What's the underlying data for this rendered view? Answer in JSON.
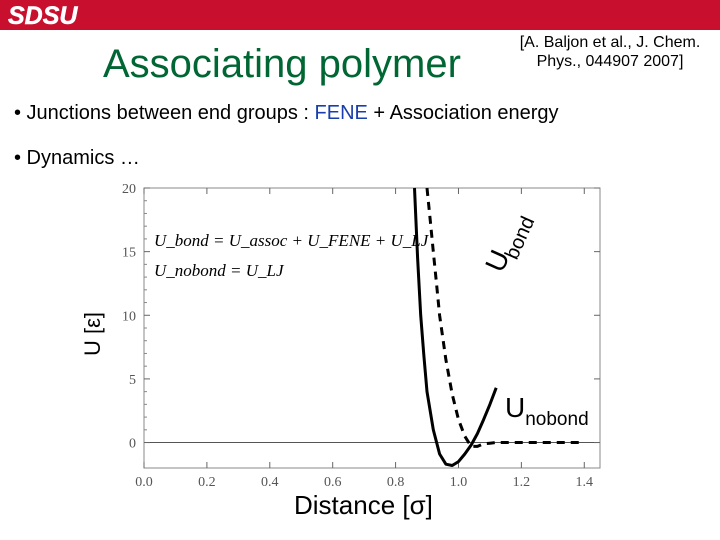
{
  "header": {
    "bar_color": "#c8102e",
    "logo_text": "SDSU"
  },
  "slide": {
    "title": "Associating polymer",
    "title_color": "#006633",
    "citation_line1": "[A. Baljon et al., J. Chem.",
    "citation_line2": "Phys., 044907 2007]",
    "bullet1_prefix": "• Junctions between end groups : ",
    "bullet1_fene": "FENE",
    "bullet1_suffix": " + Association energy",
    "bullet2": "• Dynamics …",
    "fene_color": "#1a3faa"
  },
  "chart_data": {
    "type": "line",
    "xlabel": "Distance [σ]",
    "ylabel": "U [ε]",
    "xlim": [
      0,
      1.45
    ],
    "ylim": [
      -2,
      20
    ],
    "xticks": [
      "0.0",
      "0.2",
      "0.4",
      "0.6",
      "0.8",
      "1.0",
      "1.2",
      "1.4"
    ],
    "xtick_values": [
      0,
      0.2,
      0.4,
      0.6,
      0.8,
      1.0,
      1.2,
      1.4
    ],
    "yticks": [
      "0",
      "5",
      "10",
      "15",
      "20"
    ],
    "ytick_values": [
      0,
      5,
      10,
      15,
      20
    ],
    "equations": [
      "U_bond = U_assoc + U_FENE + U_LJ",
      "U_nobond = U_LJ"
    ],
    "series": [
      {
        "name": "U_bond",
        "style": "solid",
        "x": [
          0.86,
          0.87,
          0.88,
          0.89,
          0.9,
          0.92,
          0.94,
          0.96,
          0.98,
          1.0,
          1.02,
          1.04,
          1.06,
          1.08,
          1.1,
          1.12
        ],
        "y": [
          20,
          14.5,
          10,
          6.8,
          4.0,
          1.0,
          -0.9,
          -1.7,
          -1.8,
          -1.5,
          -0.9,
          -0.2,
          0.7,
          1.8,
          3.0,
          4.3
        ]
      },
      {
        "name": "U_nobond",
        "style": "dashed",
        "x": [
          0.9,
          0.91,
          0.92,
          0.93,
          0.94,
          0.96,
          0.98,
          1.0,
          1.02,
          1.04,
          1.06,
          1.08,
          1.1,
          1.12,
          1.2,
          1.3,
          1.4
        ],
        "y": [
          20,
          17.5,
          15,
          12.5,
          10,
          6.5,
          3.8,
          1.8,
          0.5,
          -0.3,
          -0.3,
          -0.1,
          -0.05,
          0,
          0,
          0,
          0
        ]
      }
    ],
    "annotation_ubond": "U",
    "annotation_ubond_sub": "bond",
    "annotation_unobond": "U",
    "annotation_unobond_sub": "nobond"
  }
}
